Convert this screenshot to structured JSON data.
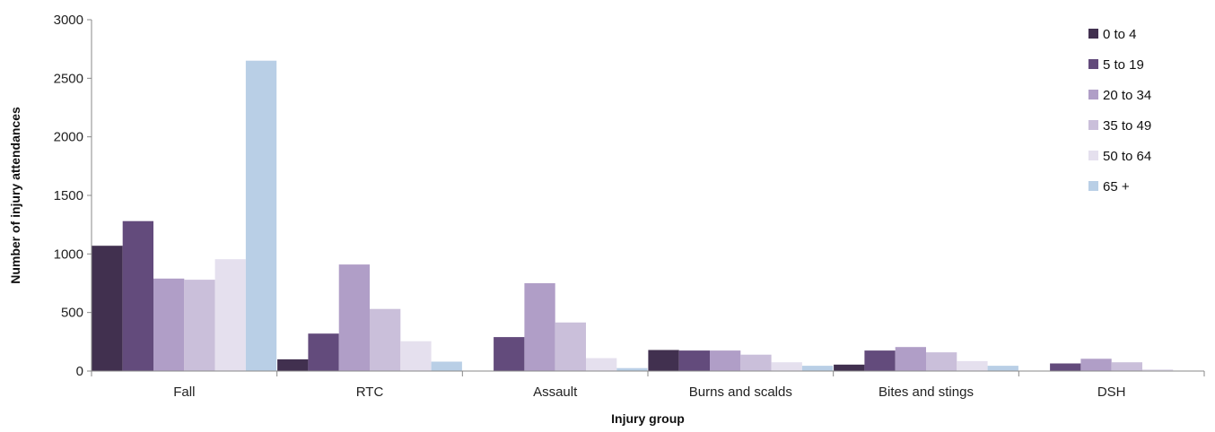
{
  "chart_data": {
    "type": "bar",
    "title": "",
    "xlabel": "Injury group",
    "ylabel": "Number of injury attendances",
    "ylim": [
      0,
      3000
    ],
    "yticks": [
      0,
      500,
      1000,
      1500,
      2000,
      2500,
      3000
    ],
    "grid": false,
    "legend_position": "right",
    "categories": [
      "Fall",
      "RTC",
      "Assault",
      "Burns and scalds",
      "Bites and stings",
      "DSH"
    ],
    "series": [
      {
        "name": "0 to 4",
        "color": "#41304f",
        "values": [
          1070,
          100,
          0,
          180,
          55,
          0
        ]
      },
      {
        "name": "5 to 19",
        "color": "#634b7c",
        "values": [
          1280,
          320,
          290,
          175,
          175,
          65
        ]
      },
      {
        "name": "20 to 34",
        "color": "#b09ec7",
        "values": [
          790,
          910,
          750,
          175,
          205,
          105
        ]
      },
      {
        "name": "35 to 49",
        "color": "#cabfda",
        "values": [
          780,
          530,
          415,
          140,
          160,
          75
        ]
      },
      {
        "name": "50 to 64",
        "color": "#e5e0ee",
        "values": [
          955,
          255,
          110,
          75,
          85,
          15
        ]
      },
      {
        "name": "65 +",
        "color": "#b9cfe6",
        "values": [
          2650,
          80,
          25,
          45,
          45,
          0
        ]
      }
    ]
  }
}
